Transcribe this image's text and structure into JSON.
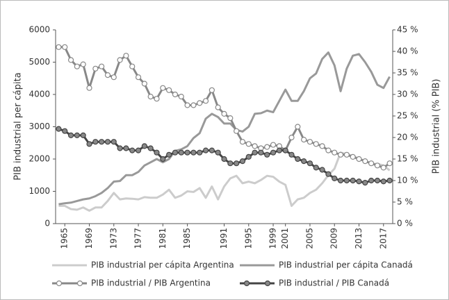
{
  "chart_data": {
    "type": "line",
    "y_label": "PIB industrial per cápita",
    "y2_label": "PIB industrial (% PIB)",
    "x": [
      1964,
      1965,
      1966,
      1967,
      1968,
      1969,
      1970,
      1971,
      1972,
      1973,
      1974,
      1975,
      1976,
      1977,
      1978,
      1979,
      1980,
      1981,
      1982,
      1983,
      1984,
      1985,
      1986,
      1987,
      1988,
      1989,
      1990,
      1991,
      1992,
      1993,
      1994,
      1995,
      1996,
      1997,
      1998,
      1999,
      2000,
      2001,
      2002,
      2003,
      2004,
      2005,
      2006,
      2007,
      2008,
      2009,
      2010,
      2011,
      2012,
      2013,
      2014,
      2015,
      2016,
      2017,
      2018
    ],
    "xlim": [
      1963.5,
      2018.5
    ],
    "xticks": [
      1965,
      1969,
      1973,
      1977,
      1981,
      1985,
      1991,
      1995,
      1999,
      2001,
      2005,
      2009,
      2013,
      2017
    ],
    "ylim": [
      0,
      6000
    ],
    "yticks": [
      0,
      1000,
      2000,
      3000,
      4000,
      5000,
      6000
    ],
    "y2lim": [
      0,
      45
    ],
    "y2ticks": [
      {
        "value": 0,
        "label": "0 %"
      },
      {
        "value": 5,
        "label": "5 %"
      },
      {
        "value": 10,
        "label": "10 %"
      },
      {
        "value": 15,
        "label": "15 %"
      },
      {
        "value": 20,
        "label": "20 %"
      },
      {
        "value": 25,
        "label": "25 %"
      },
      {
        "value": 30,
        "label": "30 %"
      },
      {
        "value": 35,
        "label": "35 %"
      },
      {
        "value": 40,
        "label": "40 %"
      },
      {
        "value": 45,
        "label": "45 %"
      }
    ],
    "series": [
      {
        "name": "PIB industrial per cápita Argentina",
        "color": "#cccccc",
        "values": [
          550,
          550,
          450,
          430,
          500,
          400,
          500,
          500,
          700,
          950,
          750,
          780,
          770,
          750,
          820,
          800,
          800,
          900,
          1050,
          800,
          870,
          1000,
          980,
          1100,
          800,
          1150,
          750,
          1150,
          1400,
          1480,
          1250,
          1300,
          1250,
          1350,
          1480,
          1450,
          1300,
          1200,
          550,
          750,
          800,
          950,
          1050,
          1250,
          1500,
          1700,
          2200,
          2150,
          2100,
          2000,
          1950,
          1850,
          1850,
          1800,
          1650
        ]
      },
      {
        "name": "PIB industrial per cápita Canadá",
        "color": "#999999",
        "values": [
          600,
          630,
          650,
          700,
          750,
          780,
          850,
          950,
          1100,
          1300,
          1320,
          1500,
          1500,
          1600,
          1800,
          1900,
          2000,
          1900,
          2000,
          2250,
          2300,
          2400,
          2650,
          2800,
          3250,
          3400,
          3300,
          3100,
          3100,
          2900,
          2850,
          3000,
          3400,
          3420,
          3500,
          3450,
          3800,
          4150,
          3800,
          3800,
          4100,
          4500,
          4650,
          5100,
          5300,
          4900,
          4100,
          4800,
          5200,
          5250,
          5000,
          4700,
          4300,
          4200,
          4550
        ]
      },
      {
        "name": "PIB industrial / PIB Argentina",
        "color": "#888888",
        "axis": "y2",
        "marker": "circle",
        "marker_fill": "#ffffff",
        "values": [
          41,
          41,
          38,
          36.5,
          37,
          31.5,
          36,
          36.5,
          34.5,
          34,
          38,
          39,
          36.5,
          34,
          32.5,
          29.5,
          29,
          31.5,
          31,
          30,
          29.5,
          27.5,
          27.5,
          28,
          28.5,
          31,
          27,
          25.5,
          24.5,
          21.5,
          19,
          18.5,
          18,
          17.5,
          17.8,
          18.3,
          18,
          17,
          20,
          22.5,
          19.5,
          19,
          18.5,
          18,
          17,
          16.5,
          16,
          16,
          15.5,
          15,
          14.5,
          14,
          13.5,
          13,
          14
        ]
      },
      {
        "name": "PIB industrial / PIB Canadá",
        "color": "#444444",
        "axis": "y2",
        "marker": "circle",
        "marker_fill": "#888888",
        "values": [
          22,
          21.5,
          20.5,
          20.5,
          20.5,
          18.5,
          19,
          19,
          19,
          19,
          17.5,
          17.5,
          17,
          17,
          18,
          17.5,
          16.5,
          15,
          16,
          16.5,
          16.5,
          16.5,
          16.5,
          16.5,
          17,
          17,
          16.5,
          15,
          14,
          14,
          14.5,
          15.5,
          16.5,
          16.5,
          16,
          16.5,
          17,
          17,
          16,
          15,
          14.5,
          14,
          13,
          12.5,
          11.5,
          10.5,
          10,
          10,
          10,
          9.8,
          9.5,
          10,
          10,
          9.8,
          10
        ]
      }
    ]
  }
}
